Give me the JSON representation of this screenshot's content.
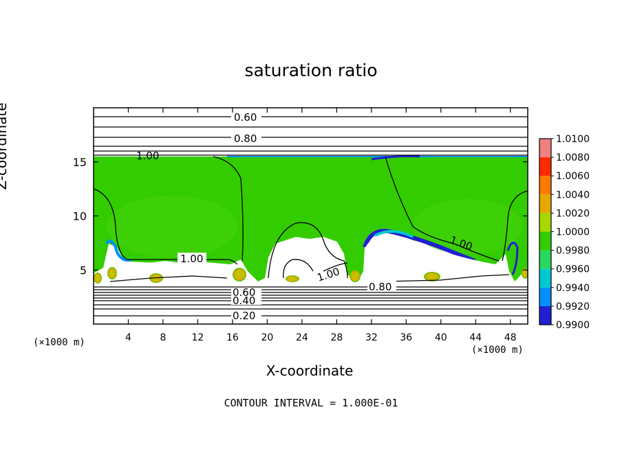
{
  "chart_data": {
    "type": "heatmap",
    "title": "saturation ratio",
    "xlabel": "X-coordinate",
    "ylabel": "Z-coordinate",
    "x_unit_label": "(×1000 m)",
    "footnote": "CONTOUR INTERVAL = 1.000E-01",
    "xlim": [
      0,
      50
    ],
    "ylim": [
      0,
      20
    ],
    "x_ticks": [
      "4",
      "8",
      "12",
      "16",
      "20",
      "24",
      "28",
      "32",
      "36",
      "40",
      "44",
      "48"
    ],
    "y_ticks": [
      "5",
      "10",
      "15"
    ],
    "colorbar": {
      "levels": [
        "1.0100",
        "1.0080",
        "1.0060",
        "1.0040",
        "1.0020",
        "1.0000",
        "0.9980",
        "0.9960",
        "0.9940",
        "0.9920",
        "0.9900"
      ],
      "colors": [
        "#f08080",
        "#ff2a00",
        "#ff7a00",
        "#e6a800",
        "#a8d800",
        "#33cc00",
        "#28d860",
        "#00c8d0",
        "#0090ff",
        "#2020d0",
        "#6a0aa8"
      ]
    },
    "contour_labels": [
      "0.60",
      "0.80",
      "1.00",
      "1.00",
      "1.00",
      "0.80",
      "1.00",
      "0.60",
      "0.40",
      "0.20"
    ],
    "grid": false,
    "legend": "right colorbar"
  }
}
